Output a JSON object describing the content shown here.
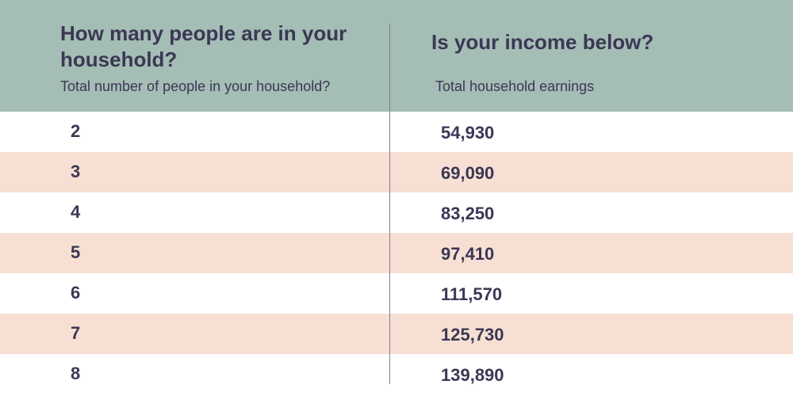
{
  "header": {
    "size_title": "How many people are in your household?",
    "size_subtitle": "Total number of people in your household?",
    "income_title": "Is your income below?",
    "income_subtitle": "Total household earnings"
  },
  "rows": [
    {
      "size": "2",
      "income": "54,930"
    },
    {
      "size": "3",
      "income": "69,090"
    },
    {
      "size": "4",
      "income": "83,250"
    },
    {
      "size": "5",
      "income": "97,410"
    },
    {
      "size": "6",
      "income": "111,570"
    },
    {
      "size": "7",
      "income": "125,730"
    },
    {
      "size": "8",
      "income": "139,890"
    }
  ],
  "colors": {
    "header_bg": "#a4bdb5",
    "alt_row_bg": "#f7e0d3",
    "text": "#3b3754"
  }
}
